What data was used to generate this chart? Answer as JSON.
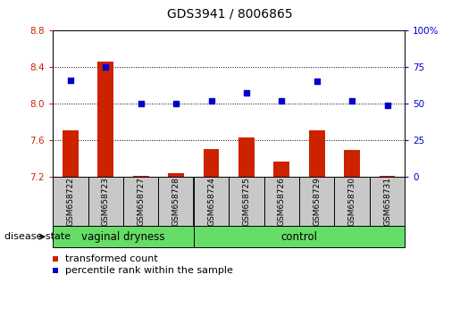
{
  "title": "GDS3941 / 8006865",
  "samples": [
    "GSM658722",
    "GSM658723",
    "GSM658727",
    "GSM658728",
    "GSM658724",
    "GSM658725",
    "GSM658726",
    "GSM658729",
    "GSM658730",
    "GSM658731"
  ],
  "bar_values": [
    7.71,
    8.46,
    7.21,
    7.24,
    7.5,
    7.63,
    7.37,
    7.71,
    7.49,
    7.21
  ],
  "dot_values": [
    66,
    75,
    50,
    50,
    52,
    57,
    52,
    65,
    52,
    49
  ],
  "ylim_left": [
    7.2,
    8.8
  ],
  "ylim_right": [
    0,
    100
  ],
  "yticks_left": [
    7.2,
    7.6,
    8.0,
    8.4,
    8.8
  ],
  "yticks_right": [
    0,
    25,
    50,
    75,
    100
  ],
  "bar_color": "#CC2200",
  "dot_color": "#0000CC",
  "bar_baseline": 7.2,
  "group_split": 4,
  "group_label_1": "vaginal dryness",
  "group_label_2": "control",
  "group_color": "#66DD66",
  "sample_box_color": "#C8C8C8",
  "disease_state_label": "disease state",
  "legend_label_1": "transformed count",
  "legend_label_2": "percentile rank within the sample",
  "title_fontsize": 10,
  "axis_fontsize": 7.5,
  "sample_fontsize": 6.5,
  "group_fontsize": 8.5,
  "legend_fontsize": 8
}
